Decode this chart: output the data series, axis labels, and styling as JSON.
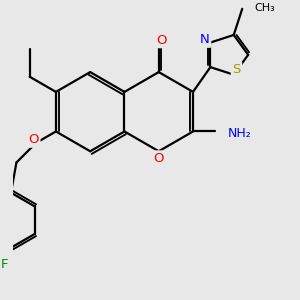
{
  "bg_color": "#e8e8e8",
  "bond_lw": 1.6,
  "fs": 8.5,
  "figsize": [
    3.0,
    3.0
  ],
  "dpi": 100,
  "xlim": [
    -0.5,
    4.5
  ],
  "ylim": [
    -3.2,
    2.2
  ]
}
